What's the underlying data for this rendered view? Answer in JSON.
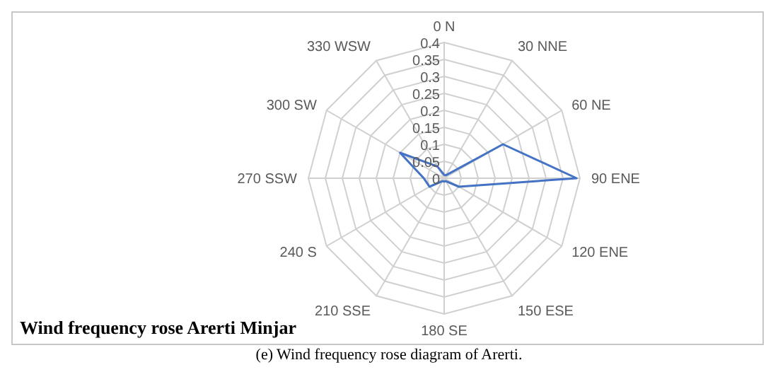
{
  "chart_data": {
    "type": "radar",
    "title": "Wind frequency rose Arerti Minjar",
    "annotations": [
      "(e) Wind frequency rose diagram of Arerti."
    ],
    "categories": [
      "0 N",
      "30 NNE",
      "60 NE",
      "90 ENE",
      "120 ENE",
      "150 ESE",
      "180 SE",
      "210 SSE",
      "240 S",
      "270 SSW",
      "300 SW",
      "330 WSW"
    ],
    "series": [
      {
        "color": "#4472c4",
        "values": [
          0.01,
          0.01,
          0.2,
          0.39,
          0.05,
          0.01,
          0.01,
          0.01,
          0.05,
          0.06,
          0.15,
          0.04
        ]
      }
    ],
    "ylim": [
      0,
      0.4
    ],
    "yticks": [
      0,
      0.05,
      0.1,
      0.15,
      0.2,
      0.25,
      0.3,
      0.35,
      0.4
    ],
    "grid": true,
    "legend": false,
    "marker": "none"
  }
}
